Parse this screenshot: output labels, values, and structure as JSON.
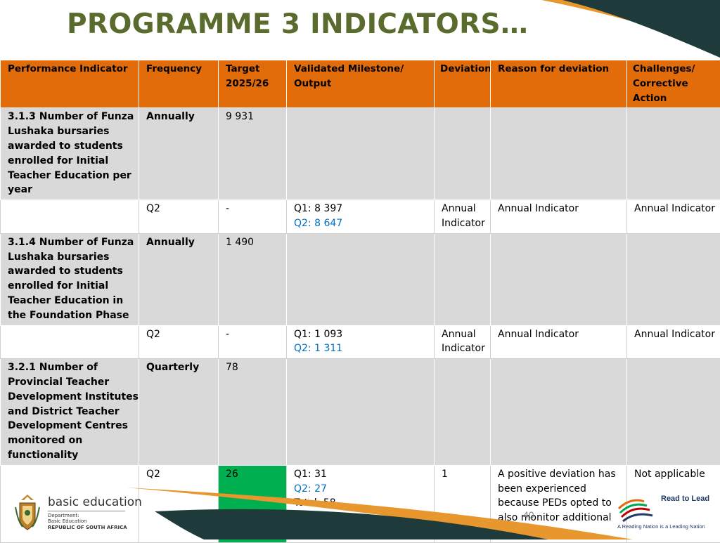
{
  "header": {
    "title": "PROGRAMME 3 INDICATORS…"
  },
  "colors": {
    "title": "#5a6b2e",
    "header_row": "#e36c0a",
    "indicator_row": "#d9d9d9",
    "highlight_green": "#00b050",
    "q2_blue": "#0070c0",
    "navy": "#1e3a3a",
    "orange": "#e8962e"
  },
  "table": {
    "headers": [
      "Performance Indicator",
      "Frequency",
      "Target 2025/26",
      "Validated Milestone/ Output",
      "Deviation",
      "Reason for deviation",
      "Challenges/ Corrective Action"
    ],
    "groups": [
      {
        "indicator": {
          "name": "3.1.3 Number of Funza Lushaka bursaries awarded to students enrolled for Initial Teacher Education per year",
          "frequency": "Annually",
          "target": "9 931"
        },
        "quarter": {
          "period": "Q2",
          "target": "-",
          "q1": "Q1: 8 397",
          "q2": "Q2: 8 647",
          "total": "",
          "deviation": "Annual Indicator",
          "reason": "Annual Indicator",
          "challenges": "Annual Indicator"
        }
      },
      {
        "indicator": {
          "name": "3.1.4 Number of Funza Lushaka bursaries awarded to students enrolled for Initial Teacher Education in the Foundation Phase",
          "frequency": "Annually",
          "target": "1 490"
        },
        "quarter": {
          "period": "Q2",
          "target": "-",
          "q1": "Q1: 1 093",
          "q2": "Q2: 1 311",
          "total": "",
          "deviation": "Annual Indicator",
          "reason": "Annual Indicator",
          "challenges": "Annual Indicator"
        }
      },
      {
        "indicator": {
          "name": "3.2.1 Number of Provincial Teacher Development Institutes and District Teacher Development Centres monitored on functionality",
          "frequency": "Quarterly",
          "target": "78"
        },
        "quarter": {
          "period": "Q2",
          "target": "26",
          "q1": "Q1: 31",
          "q2": "Q2: 27",
          "total": "Total: 58",
          "deviation": "1",
          "reason": "A positive deviation has been experienced because PEDs opted to also monitor additional centres.",
          "challenges": "Not applicable"
        }
      }
    ]
  },
  "footer": {
    "logo_main": "basic education",
    "logo_dept_1": "Department:",
    "logo_dept_2": "Basic Education",
    "logo_country": "REPUBLIC OF SOUTH AFRICA",
    "page_number": "40",
    "rtl_title": "Read to Lead",
    "rtl_tagline": "A Reading Nation is a Leading Nation"
  }
}
